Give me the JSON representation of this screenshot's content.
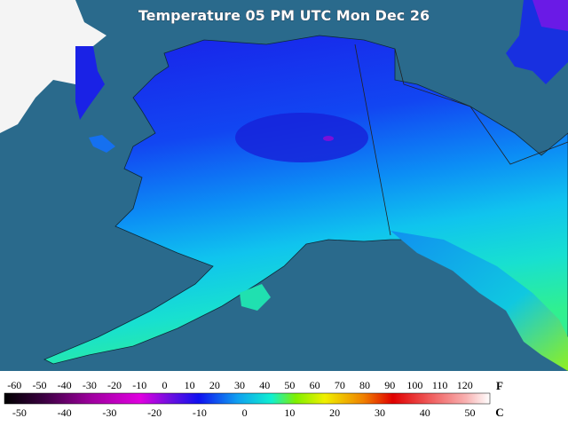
{
  "title": "Temperature 05 PM UTC Mon Dec 26",
  "legend": {
    "f_unit": "F",
    "c_unit": "C",
    "f_range": [
      -64,
      130
    ],
    "f_ticks": [
      -60,
      -50,
      -40,
      -30,
      -20,
      -10,
      0,
      10,
      20,
      30,
      40,
      50,
      60,
      70,
      80,
      90,
      100,
      110,
      120
    ],
    "c_ticks": [
      -50,
      -40,
      -30,
      -20,
      -10,
      0,
      10,
      20,
      30,
      40,
      50
    ]
  }
}
